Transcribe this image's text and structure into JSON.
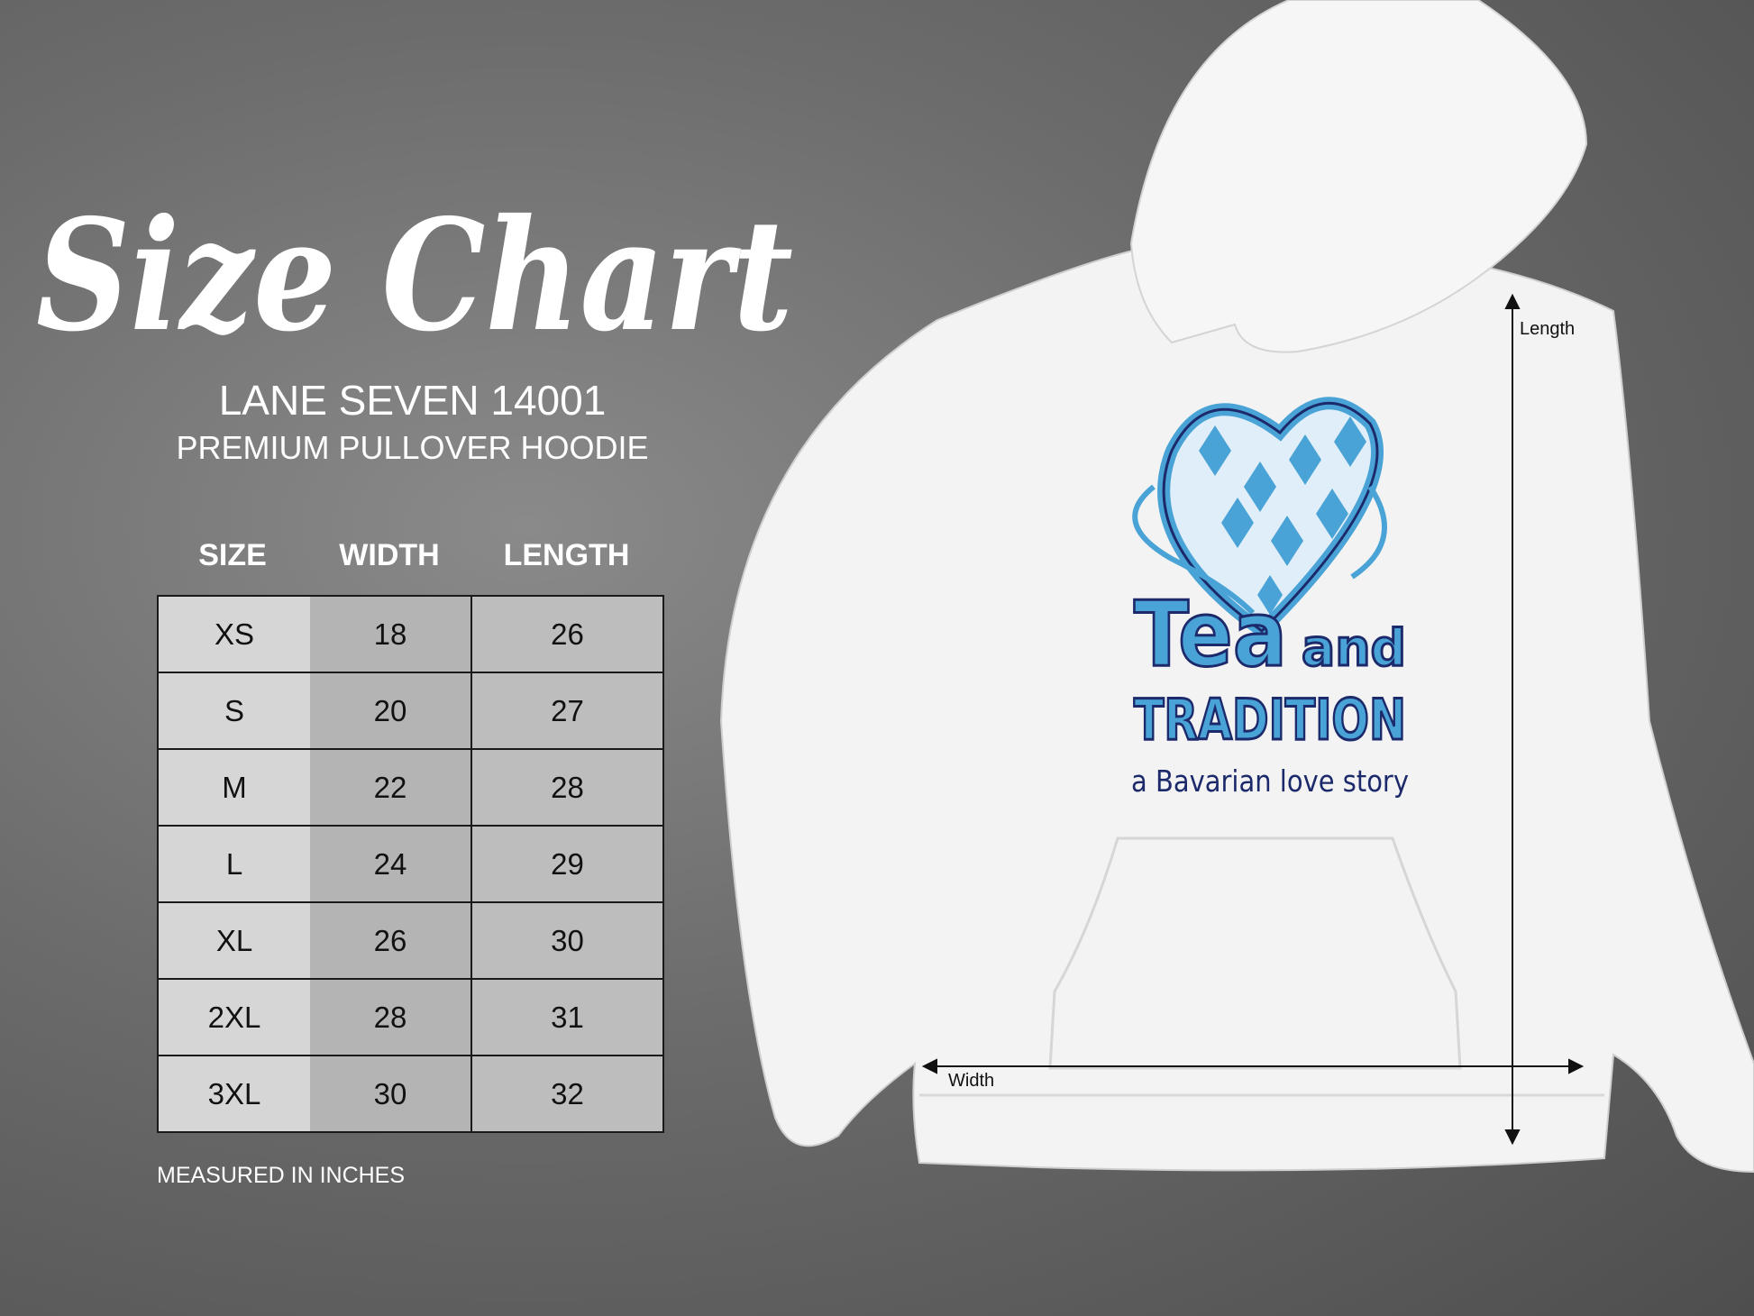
{
  "title": "Size Chart",
  "product": {
    "brand_model": "LANE SEVEN 14001",
    "type": "PREMIUM PULLOVER HOODIE"
  },
  "table": {
    "headers": [
      "SIZE",
      "WIDTH",
      "LENGTH"
    ],
    "rows": [
      [
        "XS",
        "18",
        "26"
      ],
      [
        "S",
        "20",
        "27"
      ],
      [
        "M",
        "22",
        "28"
      ],
      [
        "L",
        "24",
        "29"
      ],
      [
        "XL",
        "26",
        "30"
      ],
      [
        "2XL",
        "28",
        "31"
      ],
      [
        "3XL",
        "30",
        "32"
      ]
    ]
  },
  "note": "MEASURED IN INCHES",
  "hoodie": {
    "length_label": "Length",
    "width_label": "Width",
    "design": {
      "line1": "Tea",
      "line1b": "and",
      "line2": "TRADITION",
      "line3": "a Bavarian love story"
    },
    "colors": {
      "light_blue": "#4aa3d6",
      "dark_blue": "#1c2a6b",
      "fabric": "#f3f3f3"
    }
  }
}
